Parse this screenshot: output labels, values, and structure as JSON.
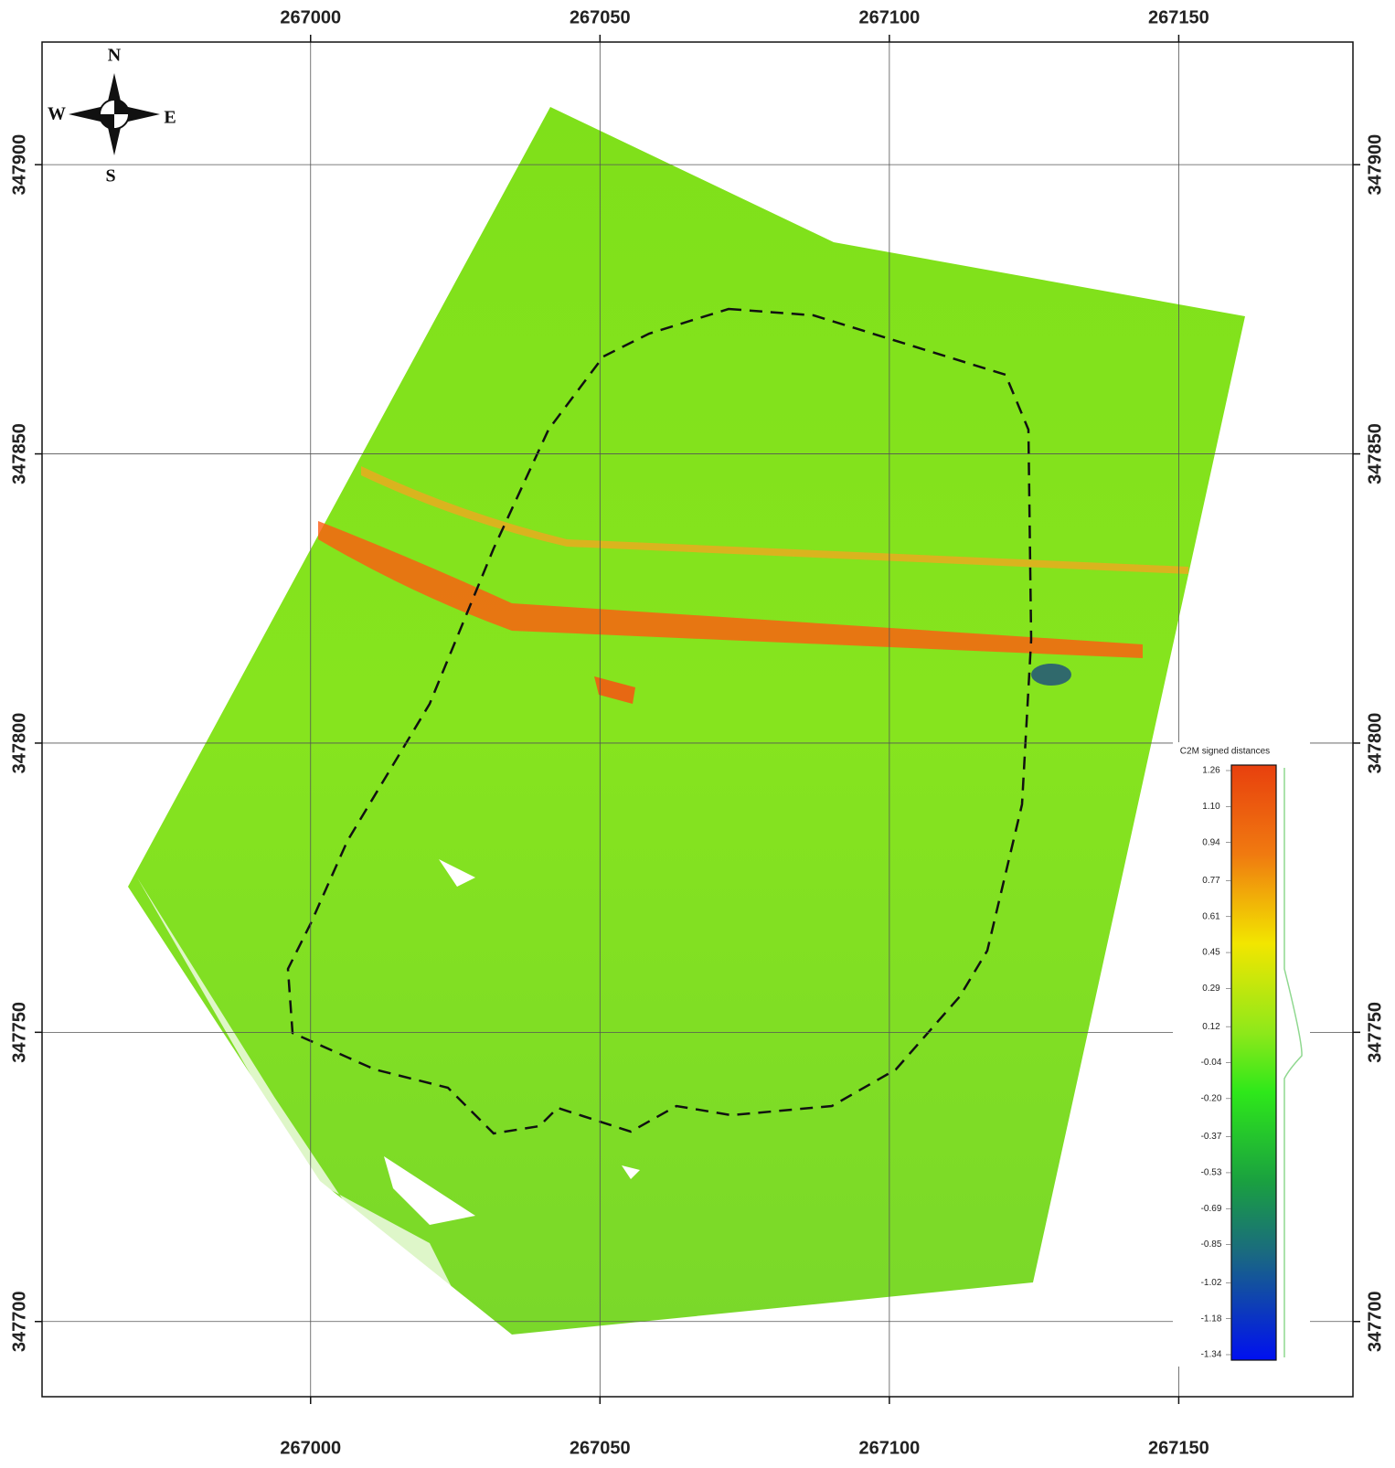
{
  "map": {
    "xlim": [
      266953.6,
      267180.1
    ],
    "ylim": [
      347687.0,
      347921.2
    ],
    "xticks": [
      267000,
      267050,
      267100,
      267150
    ],
    "yticks": [
      347700,
      347750,
      347800,
      347850,
      347900
    ]
  },
  "compass": {
    "n": "N",
    "e": "E",
    "s": "S",
    "w": "W"
  },
  "legend": {
    "title": "C2M signed distances",
    "ticks": [
      1.26,
      {
        "value": 1.1,
        "label": "1.10"
      },
      0.94,
      0.77,
      0.61,
      0.45,
      0.29,
      0.12,
      -0.04,
      {
        "value": -0.2,
        "label": "-0.20"
      },
      -0.37,
      -0.53,
      -0.69,
      -0.85,
      -1.02,
      -1.18,
      -1.34
    ]
  }
}
